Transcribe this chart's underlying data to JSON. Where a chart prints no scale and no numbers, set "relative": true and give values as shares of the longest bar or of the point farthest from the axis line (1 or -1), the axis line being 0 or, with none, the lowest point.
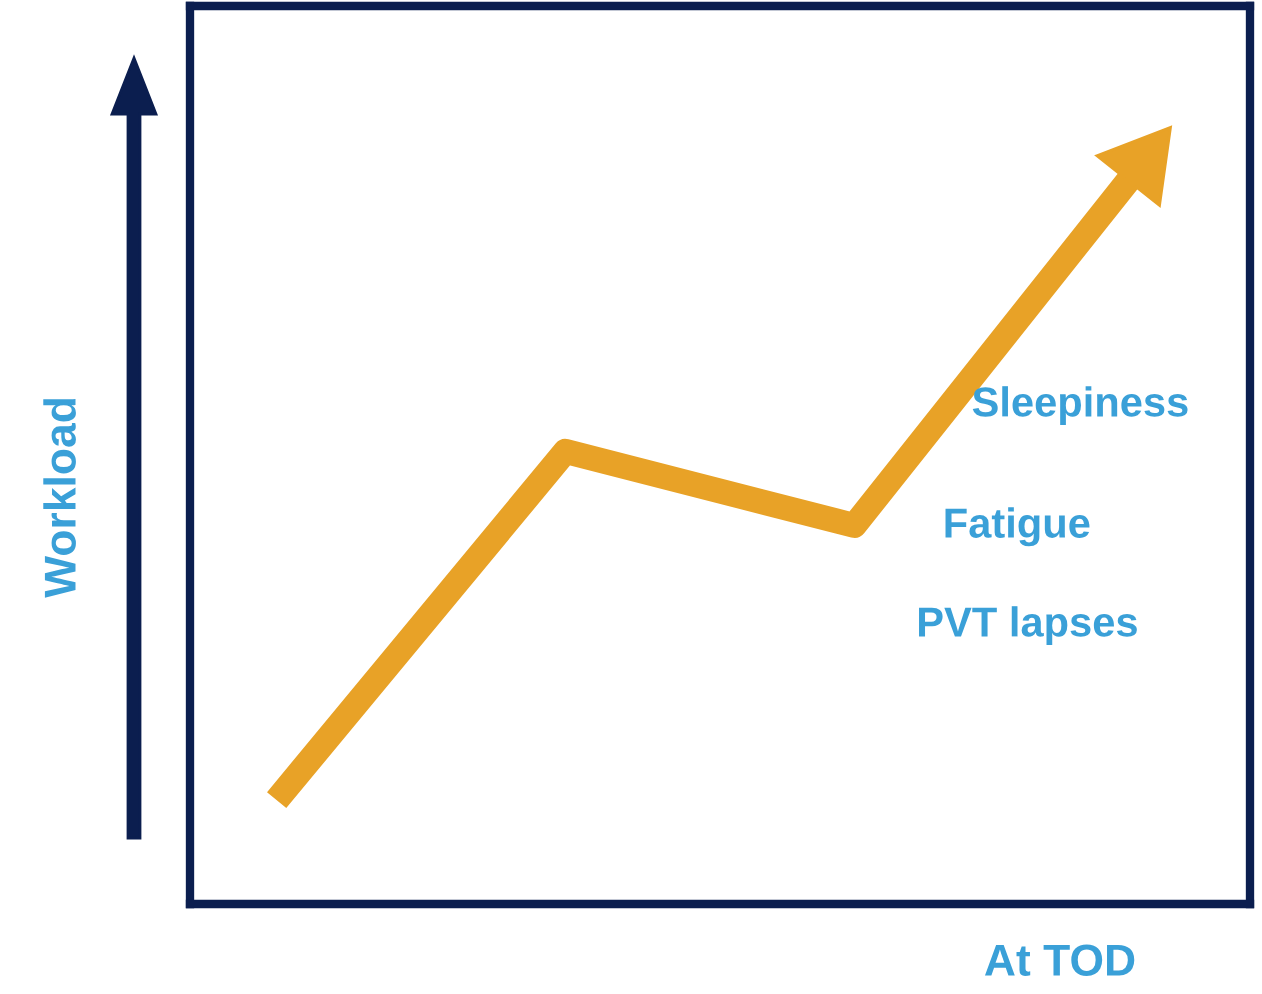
{
  "chart_data": {
    "type": "line",
    "relative": true,
    "ylabel": "Workload",
    "xlabel": "At TOD",
    "categories": [
      null,
      null,
      null,
      null
    ],
    "series": [
      {
        "color": "#e8a227",
        "values": [
          0.14,
          0.61,
          0.51,
          1.0
        ]
      }
    ],
    "annotations": [
      "Sleepiness",
      "Fatigue",
      "PVT lapses"
    ],
    "legend": false
  }
}
